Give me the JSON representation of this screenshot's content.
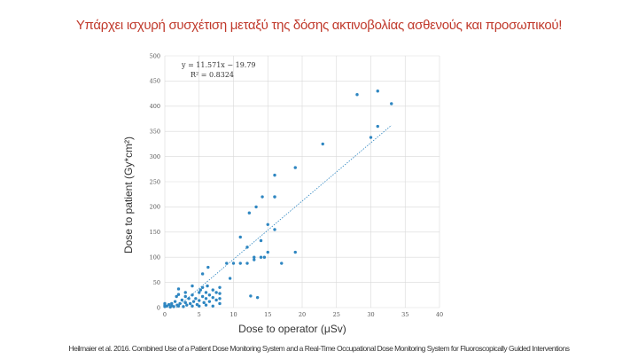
{
  "slide": {
    "title": "Υπάρχει ισχυρή συσχέτιση μεταξύ της δόσης ακτινοβολίας ασθενούς και προσωπικού!",
    "citation": "Heilmaier et al. 2016. Combined Use of a Patient Dose Monitoring System and a Real-Time Occupational Dose Monitoring System for Fluoroscopically Guided Interventions"
  },
  "colors": {
    "title": "#c0392b",
    "points": "#2e86c1",
    "trendline": "#2e86c1",
    "grid": "#d9d9d9"
  },
  "chart_data": {
    "type": "scatter",
    "title": "",
    "xlabel": "Dose to operator (μSv)",
    "ylabel": "Dose to patient (Gy*cm²)",
    "xlim": [
      0,
      40
    ],
    "ylim": [
      0,
      500
    ],
    "xticks": [
      0,
      5,
      10,
      15,
      20,
      25,
      30,
      35,
      40
    ],
    "yticks": [
      0,
      50,
      100,
      150,
      200,
      250,
      300,
      350,
      400,
      450,
      500
    ],
    "grid": true,
    "trendline": {
      "equation": "y = 11.571x − 19.79",
      "r2": "R² = 0.8324",
      "slope": 11.571,
      "intercept": -19.79,
      "x_range": [
        1.7,
        33
      ]
    },
    "points": [
      [
        0,
        2
      ],
      [
        0,
        5
      ],
      [
        0,
        8
      ],
      [
        0.3,
        3
      ],
      [
        0.6,
        6
      ],
      [
        0.8,
        1
      ],
      [
        1,
        4
      ],
      [
        1,
        8
      ],
      [
        1.3,
        2
      ],
      [
        1.5,
        12
      ],
      [
        1.7,
        22
      ],
      [
        1.8,
        5
      ],
      [
        2,
        26
      ],
      [
        2,
        37
      ],
      [
        2,
        3
      ],
      [
        2.2,
        8
      ],
      [
        2.5,
        15
      ],
      [
        2.7,
        2
      ],
      [
        3,
        10
      ],
      [
        3,
        22
      ],
      [
        3,
        30
      ],
      [
        3.2,
        5
      ],
      [
        3.5,
        18
      ],
      [
        3.7,
        8
      ],
      [
        4,
        3
      ],
      [
        4,
        25
      ],
      [
        4,
        43
      ],
      [
        4.2,
        12
      ],
      [
        4.5,
        18
      ],
      [
        4.7,
        6
      ],
      [
        5,
        30
      ],
      [
        5,
        14
      ],
      [
        5,
        3
      ],
      [
        5.2,
        35
      ],
      [
        5.5,
        22
      ],
      [
        5.5,
        40
      ],
      [
        5.7,
        10
      ],
      [
        6,
        18
      ],
      [
        6,
        5
      ],
      [
        6,
        30
      ],
      [
        6.2,
        43
      ],
      [
        6.5,
        25
      ],
      [
        6.5,
        12
      ],
      [
        7,
        35
      ],
      [
        7,
        20
      ],
      [
        7,
        3
      ],
      [
        7.5,
        30
      ],
      [
        7.5,
        15
      ],
      [
        8,
        40
      ],
      [
        8,
        28
      ],
      [
        8,
        18
      ],
      [
        8,
        8
      ],
      [
        5.5,
        67
      ],
      [
        6.3,
        80
      ],
      [
        9,
        88
      ],
      [
        9.5,
        58
      ],
      [
        10,
        88
      ],
      [
        11,
        88
      ],
      [
        11,
        140
      ],
      [
        12,
        88
      ],
      [
        12,
        120
      ],
      [
        12.3,
        188
      ],
      [
        12.5,
        23
      ],
      [
        13,
        100
      ],
      [
        13,
        95
      ],
      [
        13.3,
        200
      ],
      [
        13.5,
        20
      ],
      [
        14,
        133
      ],
      [
        14,
        100
      ],
      [
        14.2,
        220
      ],
      [
        14.5,
        100
      ],
      [
        15,
        165
      ],
      [
        15,
        110
      ],
      [
        16,
        155
      ],
      [
        16,
        220
      ],
      [
        16,
        220
      ],
      [
        16,
        263
      ],
      [
        17,
        88
      ],
      [
        19,
        110
      ],
      [
        19,
        278
      ],
      [
        23,
        325
      ],
      [
        28,
        423
      ],
      [
        30,
        338
      ],
      [
        31,
        360
      ],
      [
        31,
        430
      ],
      [
        33,
        405
      ]
    ]
  }
}
